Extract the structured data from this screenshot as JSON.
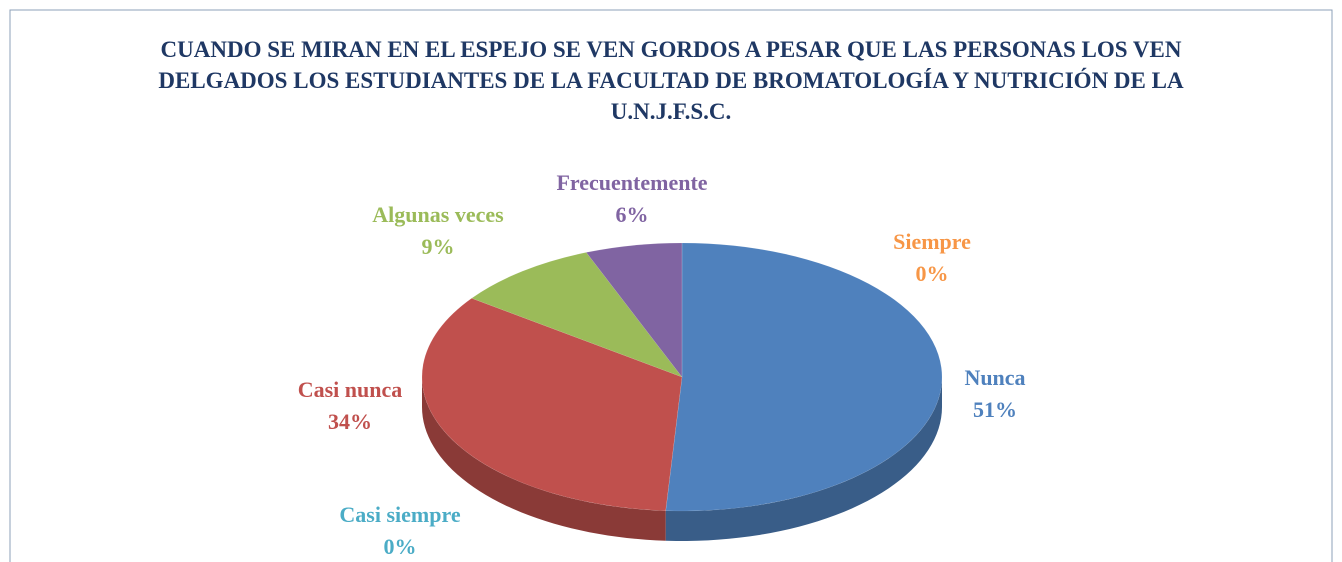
{
  "chart_data": {
    "type": "pie",
    "title": "CUANDO SE MIRAN EN EL ESPEJO SE VEN GORDOS A PESAR QUE LAS PERSONAS LOS VEN DELGADOS LOS ESTUDIANTES DE LA FACULTAD DE BROMATOLOGÍA Y NUTRICIÓN DE LA U.N.J.F.S.C.",
    "categories": [
      "Nunca",
      "Casi siempre",
      "Casi nunca",
      "Algunas veces",
      "Frecuentemente",
      "Siempre"
    ],
    "values": [
      51,
      0,
      34,
      9,
      6,
      0
    ],
    "value_labels": [
      "51%",
      "0%",
      "34%",
      "9%",
      "6%",
      "0%"
    ],
    "colors": [
      "#4f81bd",
      "#4bacc6",
      "#c0504d",
      "#9bbb59",
      "#8064a2",
      "#f79646"
    ]
  }
}
